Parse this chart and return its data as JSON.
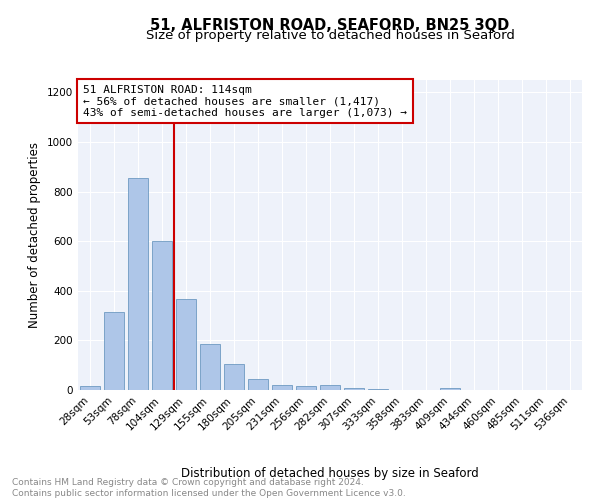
{
  "title": "51, ALFRISTON ROAD, SEAFORD, BN25 3QD",
  "subtitle": "Size of property relative to detached houses in Seaford",
  "xlabel": "Distribution of detached houses by size in Seaford",
  "ylabel": "Number of detached properties",
  "bar_labels": [
    "28sqm",
    "53sqm",
    "78sqm",
    "104sqm",
    "129sqm",
    "155sqm",
    "180sqm",
    "205sqm",
    "231sqm",
    "256sqm",
    "282sqm",
    "307sqm",
    "333sqm",
    "358sqm",
    "383sqm",
    "409sqm",
    "434sqm",
    "460sqm",
    "485sqm",
    "511sqm",
    "536sqm"
  ],
  "bar_values": [
    15,
    315,
    855,
    600,
    365,
    185,
    105,
    45,
    22,
    15,
    20,
    10,
    5,
    0,
    0,
    10,
    0,
    0,
    0,
    0,
    0
  ],
  "bar_color": "#aec6e8",
  "bar_edge_color": "#5b8db8",
  "property_line_x": 3.5,
  "annotation_text": "51 ALFRISTON ROAD: 114sqm\n← 56% of detached houses are smaller (1,417)\n43% of semi-detached houses are larger (1,073) →",
  "annotation_box_color": "#ffffff",
  "annotation_box_edge_color": "#cc0000",
  "vline_color": "#cc0000",
  "ylim": [
    0,
    1250
  ],
  "yticks": [
    0,
    200,
    400,
    600,
    800,
    1000,
    1200
  ],
  "bg_color": "#eef2fa",
  "grid_color": "#ffffff",
  "footer": "Contains HM Land Registry data © Crown copyright and database right 2024.\nContains public sector information licensed under the Open Government Licence v3.0.",
  "title_fontsize": 10.5,
  "subtitle_fontsize": 9.5,
  "axis_label_fontsize": 8.5,
  "tick_fontsize": 7.5,
  "annotation_fontsize": 8,
  "footer_fontsize": 6.5
}
